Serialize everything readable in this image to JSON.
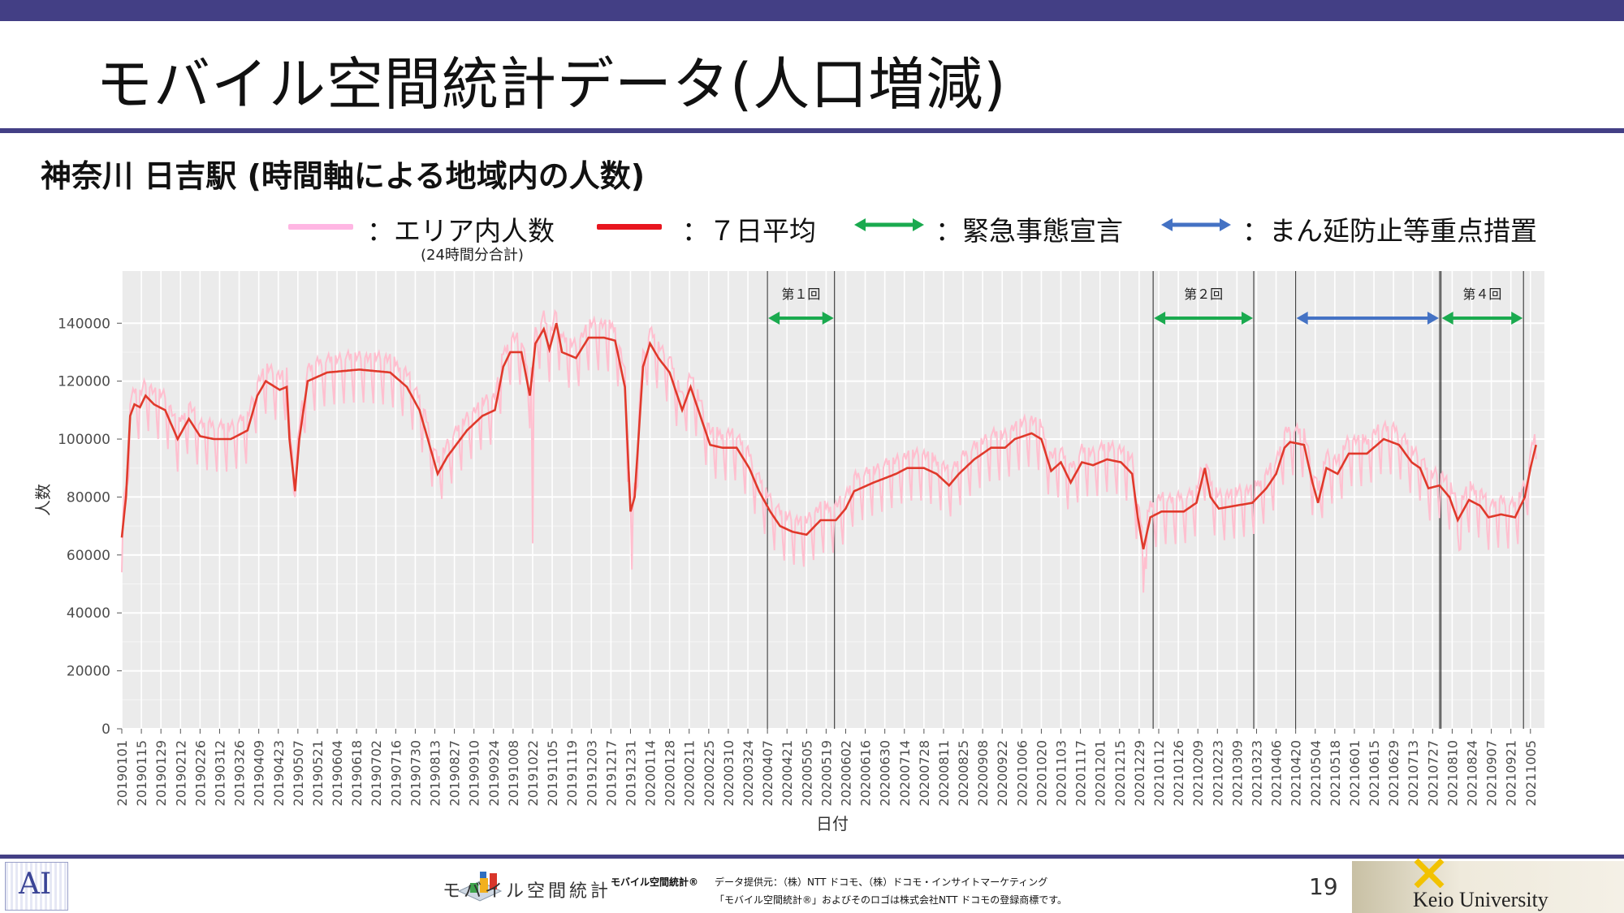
{
  "slide": {
    "title": "モバイル空間統計データ(人口増減)",
    "subtitle": "神奈川 日吉駅 (時間軸による地域内の人数)",
    "page_number": "19"
  },
  "legend": [
    {
      "label": "：エリア内人数",
      "note": "(24時間分合計)",
      "color": "#ffb6e3",
      "arrow": false
    },
    {
      "label": "：７日平均",
      "color": "#e8161f",
      "arrow": false
    },
    {
      "label": "：緊急事態宣言",
      "color": "#1aaa4f",
      "arrow": true
    },
    {
      "label": "：まん延防止等重点措置",
      "color": "#4472c4",
      "arrow": true
    }
  ],
  "footer": {
    "brand_text": "モバイル空間統計",
    "brand_small": "モバイル空間統計®",
    "provider_line": "データ提供元：（株）NTT ドコモ、（株）ドコモ・インサイトマーケティング",
    "trademark_line": "「モバイル空間統計®」およびそのロゴは株式会社NTT ドコモの登録商標です。",
    "university": "Keio University",
    "ai_logo": "AI"
  },
  "colors": {
    "accent": "#433f85",
    "raw": "#ffbfcf",
    "avg": "#e0392b",
    "emergency": "#1aaa4f",
    "manen": "#4472c4"
  },
  "chart_data": {
    "type": "line",
    "xlabel": "日付",
    "ylabel": "人数",
    "ylim": [
      0,
      158000
    ],
    "yticks": [
      0,
      20000,
      40000,
      60000,
      80000,
      100000,
      120000,
      140000
    ],
    "xlim": [
      "2019-01-01",
      "2021-10-15"
    ],
    "xtick_labels": [
      "20190101",
      "20190115",
      "20190129",
      "20190212",
      "20190226",
      "20190312",
      "20190326",
      "20190409",
      "20190423",
      "20190507",
      "20190521",
      "20190604",
      "20190618",
      "20190702",
      "20190716",
      "20190730",
      "20190813",
      "20190827",
      "20190910",
      "20190924",
      "20191008",
      "20191022",
      "20191105",
      "20191119",
      "20191203",
      "20191217",
      "20191231",
      "20200114",
      "20200128",
      "20200211",
      "20200225",
      "20200310",
      "20200324",
      "20200407",
      "20200421",
      "20200505",
      "20200519",
      "20200602",
      "20200616",
      "20200630",
      "20200714",
      "20200728",
      "20200811",
      "20200825",
      "20200908",
      "20200922",
      "20201006",
      "20201020",
      "20201103",
      "20201117",
      "20201201",
      "20201215",
      "20201229",
      "20210112",
      "20210126",
      "20210209",
      "20210223",
      "20210309",
      "20210323",
      "20210406",
      "20210420",
      "20210504",
      "20210518",
      "20210601",
      "20210615",
      "20210629",
      "20210713",
      "20210727",
      "20210810",
      "20210824",
      "20210907",
      "20210921",
      "20211005"
    ],
    "grid": true,
    "series": [
      {
        "name": "エリア内人数",
        "style": "raw",
        "weekday_amplitude": 9000,
        "note": "daily values oscillate weekly around the 7-day average"
      },
      {
        "name": "７日平均",
        "style": "avg",
        "points": [
          [
            "2019-01-01",
            66000
          ],
          [
            "2019-01-04",
            80000
          ],
          [
            "2019-01-07",
            108000
          ],
          [
            "2019-01-10",
            112000
          ],
          [
            "2019-01-14",
            111000
          ],
          [
            "2019-01-18",
            115000
          ],
          [
            "2019-01-24",
            112000
          ],
          [
            "2019-02-01",
            110000
          ],
          [
            "2019-02-10",
            100000
          ],
          [
            "2019-02-18",
            107000
          ],
          [
            "2019-02-26",
            101000
          ],
          [
            "2019-03-08",
            100000
          ],
          [
            "2019-03-20",
            100000
          ],
          [
            "2019-04-01",
            103000
          ],
          [
            "2019-04-08",
            115000
          ],
          [
            "2019-04-14",
            120000
          ],
          [
            "2019-04-24",
            117000
          ],
          [
            "2019-04-29",
            118000
          ],
          [
            "2019-05-01",
            100000
          ],
          [
            "2019-05-05",
            82000
          ],
          [
            "2019-05-08",
            100000
          ],
          [
            "2019-05-14",
            120000
          ],
          [
            "2019-05-28",
            123000
          ],
          [
            "2019-06-20",
            124000
          ],
          [
            "2019-07-12",
            123000
          ],
          [
            "2019-07-24",
            118000
          ],
          [
            "2019-08-02",
            110000
          ],
          [
            "2019-08-08",
            100000
          ],
          [
            "2019-08-15",
            88000
          ],
          [
            "2019-08-22",
            94000
          ],
          [
            "2019-09-05",
            103000
          ],
          [
            "2019-09-16",
            108000
          ],
          [
            "2019-09-25",
            110000
          ],
          [
            "2019-10-01",
            125000
          ],
          [
            "2019-10-06",
            130000
          ],
          [
            "2019-10-14",
            130000
          ],
          [
            "2019-10-20",
            115000
          ],
          [
            "2019-10-24",
            133000
          ],
          [
            "2019-10-30",
            138000
          ],
          [
            "2019-11-03",
            131000
          ],
          [
            "2019-11-08",
            140000
          ],
          [
            "2019-11-12",
            130000
          ],
          [
            "2019-11-22",
            128000
          ],
          [
            "2019-12-01",
            135000
          ],
          [
            "2019-12-12",
            135000
          ],
          [
            "2019-12-20",
            134000
          ],
          [
            "2019-12-27",
            118000
          ],
          [
            "2019-12-31",
            75000
          ],
          [
            "2020-01-03",
            80000
          ],
          [
            "2020-01-09",
            125000
          ],
          [
            "2020-01-14",
            133000
          ],
          [
            "2020-01-20",
            128000
          ],
          [
            "2020-01-28",
            123000
          ],
          [
            "2020-02-06",
            110000
          ],
          [
            "2020-02-12",
            118000
          ],
          [
            "2020-02-19",
            108000
          ],
          [
            "2020-02-26",
            98000
          ],
          [
            "2020-03-06",
            97000
          ],
          [
            "2020-03-16",
            97000
          ],
          [
            "2020-03-25",
            90000
          ],
          [
            "2020-04-01",
            82000
          ],
          [
            "2020-04-09",
            75000
          ],
          [
            "2020-04-16",
            70000
          ],
          [
            "2020-04-25",
            68000
          ],
          [
            "2020-05-05",
            67000
          ],
          [
            "2020-05-15",
            72000
          ],
          [
            "2020-05-26",
            72000
          ],
          [
            "2020-06-02",
            76000
          ],
          [
            "2020-06-08",
            82000
          ],
          [
            "2020-06-22",
            85000
          ],
          [
            "2020-07-08",
            88000
          ],
          [
            "2020-07-16",
            90000
          ],
          [
            "2020-07-28",
            90000
          ],
          [
            "2020-08-06",
            88000
          ],
          [
            "2020-08-15",
            84000
          ],
          [
            "2020-08-22",
            88000
          ],
          [
            "2020-09-02",
            93000
          ],
          [
            "2020-09-14",
            97000
          ],
          [
            "2020-09-24",
            97000
          ],
          [
            "2020-10-01",
            100000
          ],
          [
            "2020-10-13",
            102000
          ],
          [
            "2020-10-20",
            100000
          ],
          [
            "2020-10-27",
            89000
          ],
          [
            "2020-11-03",
            92000
          ],
          [
            "2020-11-10",
            85000
          ],
          [
            "2020-11-18",
            92000
          ],
          [
            "2020-11-26",
            91000
          ],
          [
            "2020-12-06",
            93000
          ],
          [
            "2020-12-16",
            92000
          ],
          [
            "2020-12-24",
            88000
          ],
          [
            "2020-12-28",
            73000
          ],
          [
            "2021-01-01",
            62000
          ],
          [
            "2021-01-06",
            73000
          ],
          [
            "2021-01-14",
            75000
          ],
          [
            "2021-01-30",
            75000
          ],
          [
            "2021-02-08",
            78000
          ],
          [
            "2021-02-14",
            90000
          ],
          [
            "2021-02-18",
            80000
          ],
          [
            "2021-02-24",
            76000
          ],
          [
            "2021-03-08",
            77000
          ],
          [
            "2021-03-20",
            78000
          ],
          [
            "2021-03-30",
            83000
          ],
          [
            "2021-04-06",
            88000
          ],
          [
            "2021-04-12",
            97000
          ],
          [
            "2021-04-16",
            99000
          ],
          [
            "2021-04-26",
            98000
          ],
          [
            "2021-05-02",
            85000
          ],
          [
            "2021-05-06",
            78000
          ],
          [
            "2021-05-12",
            90000
          ],
          [
            "2021-05-20",
            88000
          ],
          [
            "2021-05-28",
            95000
          ],
          [
            "2021-06-10",
            95000
          ],
          [
            "2021-06-22",
            100000
          ],
          [
            "2021-07-03",
            98000
          ],
          [
            "2021-07-12",
            92000
          ],
          [
            "2021-07-18",
            90000
          ],
          [
            "2021-07-24",
            83000
          ],
          [
            "2021-08-01",
            84000
          ],
          [
            "2021-08-08",
            80000
          ],
          [
            "2021-08-14",
            72000
          ],
          [
            "2021-08-22",
            79000
          ],
          [
            "2021-08-30",
            77000
          ],
          [
            "2021-09-05",
            73000
          ],
          [
            "2021-09-14",
            74000
          ],
          [
            "2021-09-24",
            73000
          ],
          [
            "2021-10-01",
            80000
          ],
          [
            "2021-10-05",
            90000
          ],
          [
            "2021-10-09",
            98000
          ]
        ]
      }
    ],
    "dips": [
      [
        "2019-01-01",
        54000
      ],
      [
        "2019-05-05",
        80000
      ],
      [
        "2019-10-22",
        64000
      ],
      [
        "2020-01-01",
        55000
      ],
      [
        "2021-01-01",
        47000
      ],
      [
        "2021-08-16",
        62000
      ]
    ],
    "periods": [
      {
        "label": "第１回",
        "start": "2020-04-07",
        "end": "2020-05-25",
        "type": "emergency"
      },
      {
        "label": "第２回",
        "start": "2021-01-08",
        "end": "2021-03-21",
        "type": "emergency"
      },
      {
        "label": "",
        "start": "2021-04-20",
        "end": "2021-08-01",
        "type": "manen"
      },
      {
        "label": "第４回",
        "start": "2021-08-02",
        "end": "2021-09-30",
        "type": "emergency"
      }
    ]
  }
}
